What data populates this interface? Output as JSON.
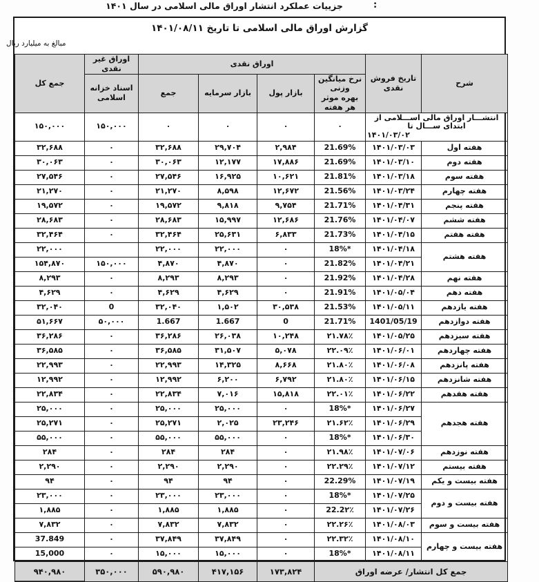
{
  "page": {
    "title": "جزییات عملکرد انتشار اوراق مالی اسلامی در سال ۱۴۰۱",
    "title_colon": ":",
    "report_title": "گزارش اوراق مالی اسلامی تا تاریخ ۱۴۰۱/۰۸/۱۱",
    "unit_note": "مبالغ به میلیارد ریال"
  },
  "table": {
    "headers": {
      "col_desc": "شرح",
      "col_cash_sale_date": "تاریخ فروش نقدی",
      "col_rate_line1": "نرخ میانگین وزنی",
      "col_rate_line2": "بهره موثر هر هفته",
      "group_cash": "اوراق نقدی",
      "col_money_market": "بازار پول",
      "col_capital_market": "بازار سرمایه",
      "col_cash_sum": "جمع",
      "group_noncash": "اوراق غیر نقدی",
      "col_treasury": "اسناد خزانه اسلامی",
      "col_grand_total": "جمع کل"
    },
    "rows": [
      {
        "label": "انتشـــار اوراق مالی اســـلامی از ابتدای ســـال تا",
        "label2": "۱۴۰۱/۰۳/۰۲",
        "merge_date": true,
        "span": 1,
        "rate": "۰",
        "money": "۰",
        "capital": "۰",
        "sum": "۰",
        "treasury": "۱۵۰,۰۰۰",
        "grand": "۱۵۰,۰۰۰"
      },
      {
        "label": "هفته اول",
        "span": 1,
        "date": "۱۴۰۱/۰۳/۰۳",
        "rate": "21.69%",
        "money": "۲,۹۸۴",
        "capital": "۲۹,۷۰۴",
        "sum": "۳۲,۶۸۸",
        "treasury": "۰",
        "grand": "۳۲,۶۸۸"
      },
      {
        "label": "هفته دوم",
        "span": 1,
        "date": "۱۴۰۱/۰۳/۱۰",
        "rate": "21.69%",
        "money": "۱۷,۸۸۶",
        "capital": "۱۲,۱۷۷",
        "sum": "۳۰,۰۶۳",
        "treasury": "۰",
        "grand": "۳۰,۰۶۳"
      },
      {
        "label": "هفته سوم",
        "span": 1,
        "date": "۱۴۰۱/۰۳/۱۸",
        "rate": "21.81%",
        "money": "۱۰,۶۲۱",
        "capital": "۱۶,۹۲۵",
        "sum": "۲۷,۵۴۶",
        "treasury": "۰",
        "grand": "۲۷,۵۴۶"
      },
      {
        "label": "هفته چهارم",
        "span": 1,
        "date": "۱۴۰۱/۰۳/۲۴",
        "rate": "21.56%",
        "money": "۱۲,۶۷۲",
        "capital": "۸,۵۹۸",
        "sum": "۲۱,۲۷۰",
        "treasury": "۰",
        "grand": "۲۱,۲۷۰"
      },
      {
        "label": "هفته پنجم",
        "span": 1,
        "date": "۱۴۰۱/۰۴/۳۱",
        "rate": "21.71%",
        "money": "۹,۷۵۴",
        "capital": "۹,۸۱۸",
        "sum": "۱۹,۵۷۲",
        "treasury": "۰",
        "grand": "۱۹,۵۷۲"
      },
      {
        "label": "هفته ششم",
        "span": 1,
        "date": "۱۴۰۱/۰۴/۰۷",
        "rate": "21.76%",
        "money": "۱۲,۶۸۶",
        "capital": "۱۵,۹۹۷",
        "sum": "۲۸,۶۸۳",
        "treasury": "۰",
        "grand": "۲۸,۶۸۳"
      },
      {
        "label": "هفته هفتم",
        "span": 1,
        "date": "۱۴۰۱/۰۴/۱۵",
        "rate": "21.73%",
        "money": "۶,۸۳۳",
        "capital": "۲۵,۶۳۱",
        "sum": "۳۲,۴۶۴",
        "treasury": "۰",
        "grand": "۳۲,۴۶۴"
      },
      {
        "label": "هفته هشتم",
        "span": 2,
        "date": "۱۴۰۱/۰۴/۱۸",
        "rate": "18%*",
        "money": "۰",
        "capital": "۲۲,۰۰۰",
        "sum": "۲۲,۰۰۰",
        "treasury": "",
        "grand": "۲۲,۰۰۰"
      },
      {
        "label": null,
        "date": "۱۴۰۱/۰۴/۲۱",
        "rate": "21.82%",
        "money": "۰",
        "capital": "۴,۸۷۰",
        "sum": "۴,۸۷۰",
        "treasury": "۱۵۰,۰۰۰",
        "grand": "۱۵۴,۸۷۰"
      },
      {
        "label": "هفته نهم",
        "span": 1,
        "date": "۱۴۰۱/۰۴/۲۸",
        "rate": "21.92%",
        "money": "۰",
        "capital": "۸,۲۹۳",
        "sum": "۸,۲۹۳",
        "treasury": "۰",
        "grand": "۸,۲۹۳"
      },
      {
        "label": "هفته دهم",
        "span": 1,
        "date": "۱۴۰۱/۰۵/۰۴",
        "rate": "21.91%",
        "money": "۰",
        "capital": "۴,۶۲۹",
        "sum": "۴,۶۲۹",
        "treasury": "۰",
        "grand": "۴,۶۲۹"
      },
      {
        "label": "هفته یازدهم",
        "span": 1,
        "date": "۱۴۰۱/۰۵/۱۱",
        "rate": "21.53%",
        "money": "۳۰,۵۳۸",
        "capital": "۱,۵۰۲",
        "sum": "۳۲,۰۴۰",
        "treasury": "0",
        "grand": "۳۲,۰۴۰"
      },
      {
        "label": "هفته دوازدهم",
        "span": 1,
        "date": "1401/05/19",
        "rate": "21.71%",
        "money": "0",
        "capital": "1.667",
        "sum": "1.667",
        "treasury": "۵۰,۰۰۰",
        "grand": "۵۱,۶۶۷"
      },
      {
        "label": "هفته سیزدهم",
        "span": 1,
        "date": "۱۴۰۱/۰۵/۲۵",
        "rate": "۲۱.۷۸٪",
        "money": "۱۰,۲۴۸",
        "capital": "۲۶,۰۳۸",
        "sum": "۳۶,۲۸۶",
        "treasury": "۰",
        "grand": "۳۶,۲۸۶"
      },
      {
        "label": "هفته چهاردهم",
        "span": 1,
        "date": "۱۴۰۱/۰۶/۰۱",
        "rate": "۲۲.۰۹٪",
        "money": "۵,۰۷۸",
        "capital": "۳۱,۵۰۷",
        "sum": "۳۶,۵۸۵",
        "treasury": "۰",
        "grand": "۳۶,۵۸۵"
      },
      {
        "label": "هفته پانزدهم",
        "span": 1,
        "date": "۱۴۰۱/۰۶/۰۸",
        "rate": "۲۱.۸۰٪",
        "money": "۸,۶۶۸",
        "capital": "۱۴,۳۲۵",
        "sum": "۲۲,۹۹۳",
        "treasury": "۰",
        "grand": "۲۲,۹۹۳"
      },
      {
        "label": "هفته شانزدهم",
        "span": 1,
        "date": "۱۴۰۱/۰۶/۱۵",
        "rate": "۲۱.۸۰٪",
        "money": "۶,۷۹۲",
        "capital": "۶,۲۰۰",
        "sum": "۱۲,۹۹۲",
        "treasury": "۰",
        "grand": "۱۲,۹۹۲"
      },
      {
        "label": "هفته هفدهم",
        "span": 1,
        "date": "۱۴۰۱/۰۶/۲۲",
        "rate": "۲۲.۰۱٪",
        "money": "۱۵,۸۱۸",
        "capital": "۷,۰۱۶",
        "sum": "۲۲,۸۳۴",
        "treasury": "۰",
        "grand": "۲۲,۸۳۴"
      },
      {
        "label": "هفته هجدهم",
        "span": 3,
        "date": "۱۴۰۱/۰۶/۲۷",
        "rate": "18%*",
        "money": "۰",
        "capital": "۲۵,۰۰۰",
        "sum": "۲۵,۰۰۰",
        "treasury": "۰",
        "grand": "۲۵,۰۰۰"
      },
      {
        "label": null,
        "date": "۱۴۰۱/۰۶/۲۹",
        "rate": "۲۱.۶۲٪",
        "money": "۲۳,۲۴۶",
        "capital": "۲,۰۲۵",
        "sum": "۲۵,۲۷۱",
        "treasury": "۰",
        "grand": "۲۵,۲۷۱"
      },
      {
        "label": null,
        "date": "۱۴۰۱/۰۶/۳۰",
        "rate": "18%*",
        "money": "۰",
        "capital": "۵۵,۰۰۰",
        "sum": "۵۵,۰۰۰",
        "treasury": "۰",
        "grand": "۵۵,۰۰۰"
      },
      {
        "label": "هفته نوزدهم",
        "span": 1,
        "date": "۱۴۰۱/۰۷/۰۶",
        "rate": "۲۱.۹۸٪",
        "money": "۰",
        "capital": "۲۸۴",
        "sum": "۲۸۴",
        "treasury": "۰",
        "grand": "۲۸۴"
      },
      {
        "label": "هفته بیستم",
        "span": 1,
        "date": "۱۴۰۱/۰۷/۱۲",
        "rate": "۲۲.۲۹٪",
        "money": "۰",
        "capital": "۲,۲۹۰",
        "sum": "۲,۲۹۰",
        "treasury": "۰",
        "grand": "۲,۲۹۰"
      },
      {
        "label": "هفته بیست و یکم",
        "span": 1,
        "date": "۱۴۰۱/۰۷/۱۹",
        "rate": "22.29%",
        "money": "۰",
        "capital": "۹۴",
        "sum": "۹۴",
        "treasury": "۰",
        "grand": "۹۴"
      },
      {
        "label": "هفته بیست و دوم",
        "span": 2,
        "date": "۱۴۰۱/۰۷/۲۵",
        "rate": "18%*",
        "money": "۰",
        "capital": "۲۳,۰۰۰",
        "sum": "۲۳,۰۰۰",
        "treasury": "۰",
        "grand": "۲۳,۰۰۰"
      },
      {
        "label": null,
        "date": "۱۴۰۱/۰۷/۲۶",
        "rate": "22.2۲٪",
        "money": "۰",
        "capital": "۱,۸۸۵",
        "sum": "۱,۸۸۵",
        "treasury": "۰",
        "grand": "۱,۸۸۵"
      },
      {
        "label": "هفته بیست و سوم",
        "span": 1,
        "date": "۱۴۰۱/۰۸/۰۳",
        "rate": "۲۲.۲۶٪",
        "money": "۰",
        "capital": "۷,۸۳۲",
        "sum": "۷,۸۳۲",
        "treasury": "۰",
        "grand": "۷,۸۳۲"
      },
      {
        "label": "هفته بیست و چهارم",
        "span": 2,
        "date": "۱۴۰۱/۰۸/۱۰",
        "rate": "۲۲.۳۲٪",
        "money": "۰",
        "capital": "۳۷,۸۴۹",
        "sum": "۳۷,۸۴۹",
        "treasury": "۰",
        "grand": "37.849"
      },
      {
        "label": null,
        "date": "۱۴۰۱/۰۸/۱۱",
        "rate": "18%*",
        "money": "۰",
        "capital": "۱۵,۰۰۰",
        "sum": "۱۵,۰۰۰",
        "treasury": "۰",
        "grand": "15,000"
      }
    ],
    "total": {
      "label": "جمع کل انتشار/ عرضه اوراق",
      "money": "۱۷۳,۸۲۴",
      "capital": "۴۱۷,۱۵۶",
      "sum": "۵۹۰,۹۸۰",
      "treasury": "۳۵۰,۰۰۰",
      "grand": "۹۴۰,۹۸۰"
    },
    "annotation_color": "#cc1414"
  }
}
